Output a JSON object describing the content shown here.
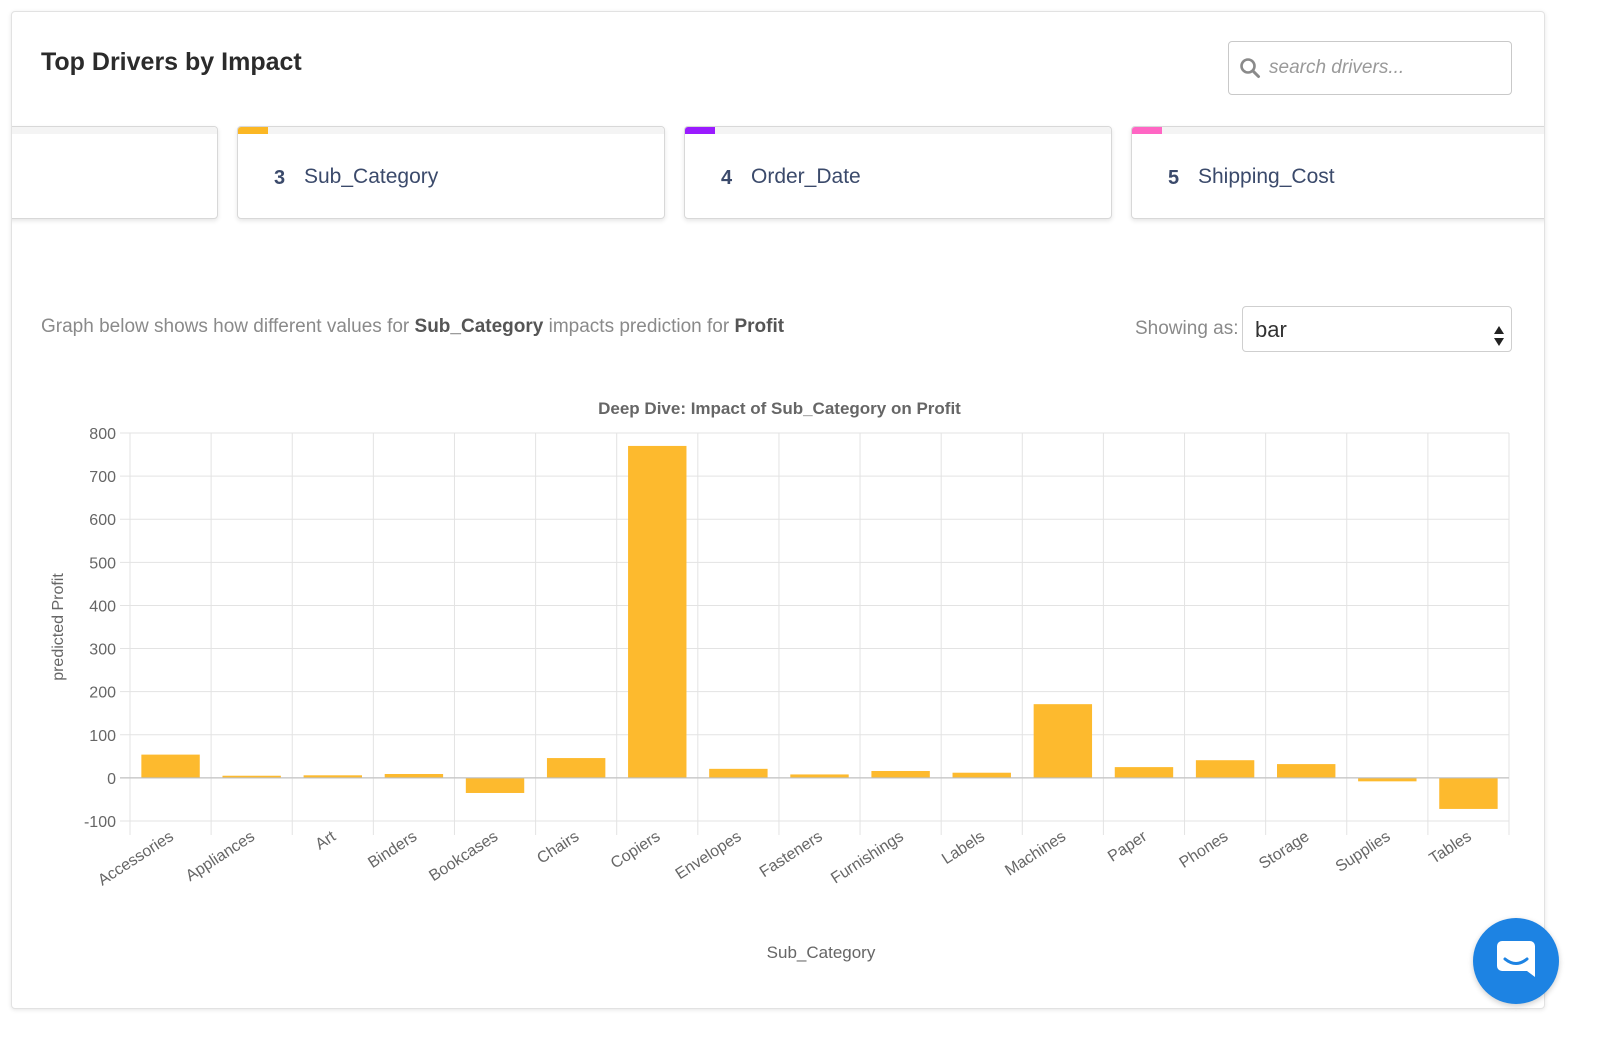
{
  "header": {
    "title": "Top Drivers by Impact",
    "search_placeholder": "search drivers..."
  },
  "drivers": [
    {
      "rank": "",
      "name": "",
      "color": "#f0f0f0"
    },
    {
      "rank": "3",
      "name": "Sub_Category",
      "color": "#fbb724"
    },
    {
      "rank": "4",
      "name": "Order_Date",
      "color": "#9a1bff"
    },
    {
      "rank": "5",
      "name": "Shipping_Cost",
      "color": "#ff66c4"
    }
  ],
  "description": {
    "prefix": "Graph below shows how different values for",
    "feature": "Sub_Category",
    "middle": "impacts prediction for",
    "target": "Profit"
  },
  "showing": {
    "label": "Showing as:",
    "value": "bar"
  },
  "chart_data": {
    "type": "bar",
    "title": "Deep Dive: Impact of Sub_Category on Profit",
    "xlabel": "Sub_Category",
    "ylabel": "predicted Profit",
    "ylim": [
      -100,
      800
    ],
    "yticks": [
      800,
      700,
      600,
      500,
      400,
      300,
      200,
      100,
      0,
      -100
    ],
    "grid": true,
    "color": "#fdba2e",
    "categories": [
      "Accessories",
      "Appliances",
      "Art",
      "Binders",
      "Bookcases",
      "Chairs",
      "Copiers",
      "Envelopes",
      "Fasteners",
      "Furnishings",
      "Labels",
      "Machines",
      "Paper",
      "Phones",
      "Storage",
      "Supplies",
      "Tables"
    ],
    "values": [
      54,
      5,
      6,
      9,
      -35,
      46,
      770,
      21,
      8,
      16,
      12,
      171,
      25,
      41,
      32,
      -8,
      -72
    ]
  }
}
